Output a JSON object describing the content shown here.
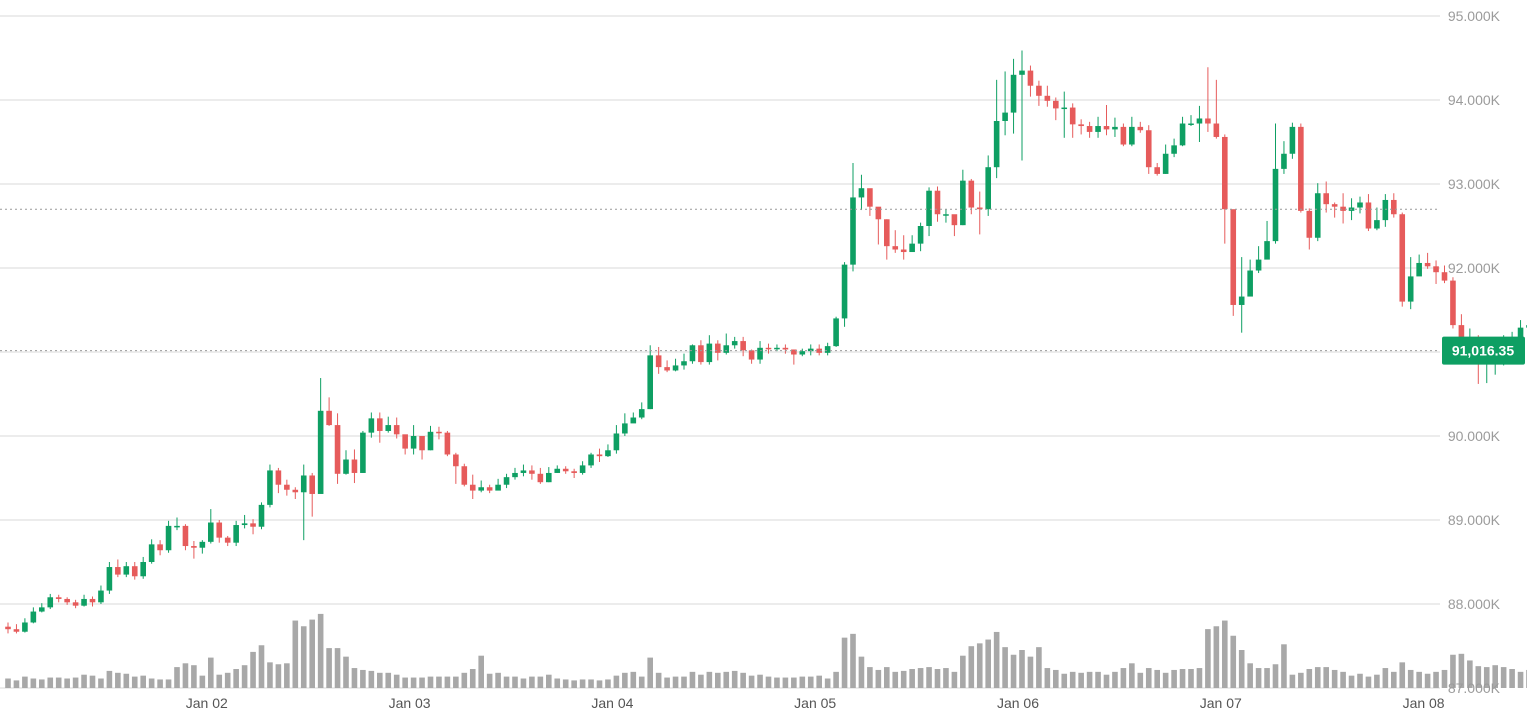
{
  "colors": {
    "up": "#0e9f63",
    "down": "#e65b5b",
    "volume": "#a8a8a8",
    "grid": "#d9d9d9",
    "axis_text": "#9b9b9b",
    "tag_bg": "#0e9f63"
  },
  "chart_data": {
    "type": "candlestick",
    "symbol_price_tag": "91,016.35",
    "current_price": 91016.35,
    "reference_line_price": 92700,
    "y_axis": {
      "min": 87000,
      "max": 95000,
      "ticks": [
        "87.000K",
        "88.000K",
        "89.000K",
        "90.000K",
        "91.000K",
        "92.000K",
        "93.000K",
        "94.000K",
        "95.000K"
      ],
      "position": "right"
    },
    "x_axis": {
      "ticks": [
        "Jan 02",
        "Jan 03",
        "Jan 04",
        "Jan 05",
        "Jan 06",
        "Jan 07",
        "Jan 08"
      ],
      "tick_candle_index": [
        24,
        48,
        72,
        96,
        120,
        144,
        168
      ]
    },
    "grid": true,
    "volume_scale_max": 1,
    "candles": [
      [
        87730,
        87700,
        87780,
        87650,
        0.1
      ],
      [
        87700,
        87670,
        87760,
        87650,
        0.08
      ],
      [
        87670,
        87780,
        87830,
        87660,
        0.12
      ],
      [
        87780,
        87910,
        87960,
        87770,
        0.1
      ],
      [
        87910,
        87960,
        88010,
        87900,
        0.09
      ],
      [
        87960,
        88080,
        88120,
        87940,
        0.11
      ],
      [
        88080,
        88060,
        88110,
        88020,
        0.11
      ],
      [
        88060,
        88020,
        88080,
        87990,
        0.1
      ],
      [
        88020,
        87980,
        88050,
        87950,
        0.11
      ],
      [
        87980,
        88060,
        88110,
        87970,
        0.14
      ],
      [
        88060,
        88020,
        88090,
        87970,
        0.13
      ],
      [
        88020,
        88160,
        88220,
        88000,
        0.1
      ],
      [
        88160,
        88440,
        88500,
        88120,
        0.18
      ],
      [
        88440,
        88350,
        88530,
        88320,
        0.16
      ],
      [
        88350,
        88450,
        88500,
        88320,
        0.15
      ],
      [
        88450,
        88330,
        88500,
        88290,
        0.12
      ],
      [
        88330,
        88500,
        88560,
        88300,
        0.13
      ],
      [
        88500,
        88710,
        88770,
        88480,
        0.1
      ],
      [
        88710,
        88640,
        88760,
        88580,
        0.09
      ],
      [
        88640,
        88930,
        88990,
        88610,
        0.09
      ],
      [
        88930,
        88930,
        89030,
        88880,
        0.22
      ],
      [
        88930,
        88690,
        88950,
        88640,
        0.26
      ],
      [
        88690,
        88670,
        88750,
        88540,
        0.24
      ],
      [
        88670,
        88740,
        88760,
        88600,
        0.13
      ],
      [
        88740,
        88970,
        89130,
        88720,
        0.32
      ],
      [
        88970,
        88790,
        89000,
        88730,
        0.14
      ],
      [
        88790,
        88730,
        88810,
        88690,
        0.16
      ],
      [
        88730,
        88940,
        88990,
        88690,
        0.2
      ],
      [
        88940,
        88960,
        89060,
        88900,
        0.24
      ],
      [
        88960,
        88920,
        89010,
        88830,
        0.38
      ],
      [
        88920,
        89180,
        89210,
        88890,
        0.45
      ],
      [
        89180,
        89590,
        89660,
        89150,
        0.27
      ],
      [
        89590,
        89420,
        89620,
        89320,
        0.25
      ],
      [
        89420,
        89360,
        89480,
        89290,
        0.26
      ],
      [
        89360,
        89330,
        89390,
        89250,
        0.71
      ],
      [
        89330,
        89530,
        89660,
        88760,
        0.65
      ],
      [
        89530,
        89310,
        89560,
        89040,
        0.72
      ],
      [
        89310,
        90300,
        90690,
        89320,
        0.78
      ],
      [
        90300,
        90130,
        90460,
        90120,
        0.42
      ],
      [
        90130,
        89550,
        90270,
        89430,
        0.42
      ],
      [
        89550,
        89720,
        89830,
        89540,
        0.33
      ],
      [
        89720,
        89560,
        89840,
        89440,
        0.21
      ],
      [
        89560,
        90040,
        90060,
        89560,
        0.19
      ],
      [
        90040,
        90210,
        90280,
        89980,
        0.18
      ],
      [
        90210,
        90060,
        90280,
        89920,
        0.16
      ],
      [
        90060,
        90130,
        90230,
        90040,
        0.16
      ],
      [
        90130,
        90020,
        90220,
        89970,
        0.14
      ],
      [
        90020,
        89850,
        89990,
        89780,
        0.11
      ],
      [
        89850,
        90000,
        90130,
        89780,
        0.11
      ],
      [
        90000,
        89830,
        89970,
        89720,
        0.11
      ],
      [
        89830,
        90050,
        90120,
        89830,
        0.12
      ],
      [
        90050,
        90040,
        90110,
        89960,
        0.12
      ],
      [
        90040,
        89780,
        90060,
        89760,
        0.12
      ],
      [
        89780,
        89640,
        89800,
        89430,
        0.12
      ],
      [
        89640,
        89420,
        89670,
        89400,
        0.16
      ],
      [
        89420,
        89350,
        89540,
        89250,
        0.2
      ],
      [
        89350,
        89390,
        89470,
        89330,
        0.34
      ],
      [
        89390,
        89350,
        89420,
        89320,
        0.15
      ],
      [
        89350,
        89420,
        89490,
        89360,
        0.16
      ],
      [
        89420,
        89510,
        89550,
        89380,
        0.12
      ],
      [
        89510,
        89560,
        89620,
        89480,
        0.12
      ],
      [
        89560,
        89590,
        89660,
        89520,
        0.1
      ],
      [
        89590,
        89550,
        89650,
        89480,
        0.12
      ],
      [
        89550,
        89450,
        89620,
        89430,
        0.12
      ],
      [
        89450,
        89560,
        89630,
        89450,
        0.14
      ],
      [
        89560,
        89610,
        89650,
        89560,
        0.1
      ],
      [
        89610,
        89580,
        89640,
        89550,
        0.09
      ],
      [
        89580,
        89560,
        89610,
        89500,
        0.08
      ],
      [
        89560,
        89650,
        89700,
        89540,
        0.09
      ],
      [
        89650,
        89780,
        89800,
        89620,
        0.09
      ],
      [
        89780,
        89760,
        89850,
        89690,
        0.08
      ],
      [
        89760,
        89830,
        89900,
        89750,
        0.09
      ],
      [
        89830,
        90030,
        90130,
        89790,
        0.13
      ],
      [
        90030,
        90150,
        90270,
        90000,
        0.16
      ],
      [
        90150,
        90220,
        90280,
        90170,
        0.17
      ],
      [
        90220,
        90320,
        90400,
        90200,
        0.12
      ],
      [
        90320,
        90960,
        91080,
        90320,
        0.32
      ],
      [
        90960,
        90820,
        91060,
        90740,
        0.16
      ],
      [
        90820,
        90780,
        90900,
        90760,
        0.11
      ],
      [
        90780,
        90840,
        90920,
        90770,
        0.12
      ],
      [
        90840,
        90890,
        90980,
        90790,
        0.12
      ],
      [
        90890,
        91080,
        91090,
        90860,
        0.17
      ],
      [
        91080,
        90880,
        91140,
        90850,
        0.14
      ],
      [
        90880,
        91100,
        91200,
        90850,
        0.17
      ],
      [
        91100,
        90990,
        91140,
        90900,
        0.16
      ],
      [
        90990,
        91080,
        91220,
        90970,
        0.17
      ],
      [
        91080,
        91130,
        91180,
        91040,
        0.18
      ],
      [
        91130,
        91020,
        91180,
        90950,
        0.16
      ],
      [
        91020,
        90910,
        91030,
        90860,
        0.13
      ],
      [
        90910,
        91050,
        91130,
        90860,
        0.14
      ],
      [
        91050,
        91040,
        91100,
        90980,
        0.12
      ],
      [
        91040,
        91050,
        91090,
        91010,
        0.11
      ],
      [
        91050,
        91030,
        91090,
        90980,
        0.11
      ],
      [
        91030,
        90970,
        91030,
        90850,
        0.11
      ],
      [
        90970,
        91010,
        91040,
        90950,
        0.12
      ],
      [
        91010,
        91040,
        91090,
        90960,
        0.12
      ],
      [
        91040,
        90990,
        91090,
        90960,
        0.13
      ],
      [
        90990,
        91070,
        91110,
        90960,
        0.1
      ],
      [
        91070,
        91400,
        91420,
        91060,
        0.17
      ],
      [
        91400,
        92040,
        92070,
        91300,
        0.53
      ],
      [
        92040,
        92840,
        93250,
        91960,
        0.57
      ],
      [
        92840,
        92950,
        93110,
        92690,
        0.33
      ],
      [
        92950,
        92730,
        92940,
        92620,
        0.22
      ],
      [
        92730,
        92580,
        92710,
        92280,
        0.19
      ],
      [
        92580,
        92260,
        92580,
        92100,
        0.22
      ],
      [
        92260,
        92220,
        92450,
        92180,
        0.17
      ],
      [
        92220,
        92190,
        92390,
        92100,
        0.18
      ],
      [
        92190,
        92290,
        92390,
        92210,
        0.2
      ],
      [
        92290,
        92500,
        92540,
        92200,
        0.21
      ],
      [
        92500,
        92920,
        92960,
        92380,
        0.22
      ],
      [
        92920,
        92640,
        92970,
        92550,
        0.2
      ],
      [
        92640,
        92640,
        92700,
        92540,
        0.21
      ],
      [
        92640,
        92510,
        92630,
        92380,
        0.17
      ],
      [
        92510,
        93040,
        93170,
        92510,
        0.34
      ],
      [
        93040,
        92720,
        93060,
        92640,
        0.44
      ],
      [
        92720,
        92700,
        92910,
        92400,
        0.47
      ],
      [
        92700,
        93200,
        93340,
        92620,
        0.51
      ],
      [
        93200,
        93750,
        94240,
        93070,
        0.59
      ],
      [
        93750,
        93850,
        94340,
        93580,
        0.43
      ],
      [
        93850,
        94300,
        94490,
        93600,
        0.35
      ],
      [
        94300,
        94350,
        94590,
        93280,
        0.4
      ],
      [
        94350,
        94170,
        94410,
        94040,
        0.33
      ],
      [
        94170,
        94050,
        94230,
        93930,
        0.43
      ],
      [
        94050,
        93990,
        94170,
        93920,
        0.21
      ],
      [
        93990,
        93900,
        94030,
        93760,
        0.19
      ],
      [
        93900,
        93910,
        94100,
        93550,
        0.15
      ],
      [
        93910,
        93710,
        93960,
        93550,
        0.17
      ],
      [
        93710,
        93690,
        93770,
        93590,
        0.16
      ],
      [
        93690,
        93620,
        93740,
        93550,
        0.17
      ],
      [
        93620,
        93690,
        93800,
        93550,
        0.17
      ],
      [
        93690,
        93650,
        93940,
        93580,
        0.14
      ],
      [
        93650,
        93680,
        93790,
        93560,
        0.17
      ],
      [
        93680,
        93470,
        93720,
        93450,
        0.21
      ],
      [
        93470,
        93680,
        93800,
        93450,
        0.26
      ],
      [
        93680,
        93640,
        93740,
        93610,
        0.16
      ],
      [
        93640,
        93200,
        93700,
        93120,
        0.21
      ],
      [
        93200,
        93120,
        93250,
        93100,
        0.19
      ],
      [
        93120,
        93360,
        93470,
        93120,
        0.16
      ],
      [
        93360,
        93460,
        93540,
        93320,
        0.19
      ],
      [
        93460,
        93720,
        93800,
        93450,
        0.2
      ],
      [
        93720,
        93720,
        93820,
        93690,
        0.2
      ],
      [
        93720,
        93780,
        93930,
        93500,
        0.21
      ],
      [
        93780,
        93720,
        94390,
        93620,
        0.62
      ],
      [
        93720,
        93560,
        94240,
        93540,
        0.65
      ],
      [
        93560,
        92700,
        93590,
        92290,
        0.71
      ],
      [
        92700,
        91560,
        92690,
        91430,
        0.55
      ],
      [
        91560,
        91660,
        92130,
        91230,
        0.4
      ],
      [
        91660,
        91970,
        92100,
        91680,
        0.26
      ],
      [
        91970,
        92100,
        92260,
        91940,
        0.21
      ],
      [
        92100,
        92320,
        92560,
        92120,
        0.21
      ],
      [
        92320,
        93180,
        93720,
        92290,
        0.25
      ],
      [
        93180,
        93360,
        93510,
        93120,
        0.46
      ],
      [
        93360,
        93680,
        93730,
        93300,
        0.14
      ],
      [
        93680,
        92680,
        93720,
        92660,
        0.16
      ],
      [
        92680,
        92360,
        92710,
        92220,
        0.2
      ],
      [
        92360,
        92890,
        93010,
        92320,
        0.22
      ],
      [
        92890,
        92760,
        93030,
        92660,
        0.22
      ],
      [
        92760,
        92730,
        92780,
        92600,
        0.19
      ],
      [
        92730,
        92680,
        92890,
        92530,
        0.17
      ],
      [
        92680,
        92720,
        92830,
        92570,
        0.13
      ],
      [
        92720,
        92780,
        92850,
        92650,
        0.15
      ],
      [
        92780,
        92470,
        92880,
        92440,
        0.12
      ],
      [
        92470,
        92570,
        92720,
        92450,
        0.14
      ],
      [
        92570,
        92810,
        92880,
        92490,
        0.21
      ],
      [
        92810,
        92640,
        92890,
        92600,
        0.17
      ],
      [
        92640,
        91600,
        92660,
        91540,
        0.27
      ],
      [
        91600,
        91900,
        92130,
        91510,
        0.19
      ],
      [
        91900,
        92060,
        92160,
        91930,
        0.17
      ],
      [
        92060,
        92020,
        92180,
        91990,
        0.15
      ],
      [
        92020,
        91950,
        92090,
        91810,
        0.17
      ],
      [
        91950,
        91850,
        92030,
        91820,
        0.19
      ],
      [
        91850,
        91320,
        91890,
        91280,
        0.35
      ],
      [
        91320,
        91020,
        91450,
        90980,
        0.36
      ],
      [
        91020,
        91080,
        91280,
        91020,
        0.29
      ],
      [
        91080,
        90890,
        91200,
        90620,
        0.23
      ],
      [
        90890,
        90930,
        91130,
        90630,
        0.22
      ],
      [
        90930,
        91000,
        91110,
        90730,
        0.24
      ],
      [
        91000,
        91060,
        91200,
        90840,
        0.22
      ],
      [
        91060,
        91160,
        91240,
        90980,
        0.2
      ],
      [
        91160,
        91290,
        91380,
        91090,
        0.17
      ],
      [
        91290,
        91320,
        91390,
        91120,
        0.19
      ],
      [
        91320,
        91270,
        91530,
        91180,
        0.23
      ],
      [
        91270,
        90930,
        91320,
        90820,
        0.17
      ],
      [
        90930,
        90800,
        90990,
        90600,
        0.2
      ],
      [
        90800,
        90890,
        91030,
        90720,
        0.23
      ],
      [
        90890,
        91016,
        91090,
        90810,
        0.04
      ]
    ]
  }
}
